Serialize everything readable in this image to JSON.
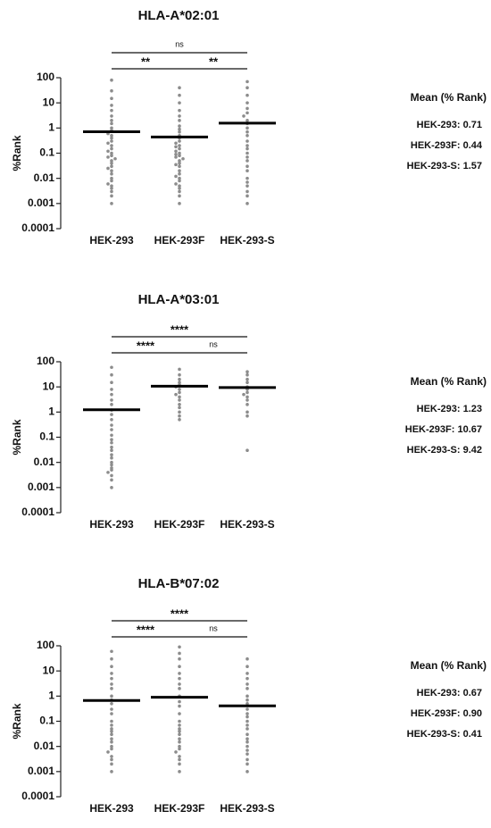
{
  "chart_data": [
    {
      "type": "dot",
      "title": "HLA-A*02:01",
      "ylabel": "%Rank",
      "log_scale": true,
      "color": "#8c8c8c",
      "categories": [
        "HEK-293",
        "HEK-293F",
        "HEK-293-S"
      ],
      "points": [
        [
          80,
          30,
          15,
          8,
          5,
          3,
          2,
          1.5,
          1,
          0.8,
          0.6,
          0.5,
          0.4,
          0.3,
          0.25,
          0.2,
          0.15,
          0.12,
          0.1,
          0.08,
          0.07,
          0.06,
          0.05,
          0.04,
          0.03,
          0.025,
          0.02,
          0.015,
          0.01,
          0.008,
          0.006,
          0.005,
          0.004,
          0.003,
          0.002,
          0.001
        ],
        [
          40,
          20,
          10,
          5,
          3,
          2,
          1.2,
          0.9,
          0.7,
          0.5,
          0.4,
          0.3,
          0.25,
          0.2,
          0.18,
          0.15,
          0.12,
          0.1,
          0.09,
          0.08,
          0.07,
          0.06,
          0.05,
          0.04,
          0.035,
          0.03,
          0.02,
          0.015,
          0.012,
          0.01,
          0.008,
          0.006,
          0.005,
          0.004,
          0.003,
          0.002,
          0.001
        ],
        [
          70,
          40,
          20,
          10,
          6,
          4,
          3,
          2,
          1.5,
          1,
          0.7,
          0.5,
          0.3,
          0.2,
          0.15,
          0.1,
          0.07,
          0.05,
          0.03,
          0.02,
          0.01,
          0.007,
          0.005,
          0.003,
          0.002,
          0.001
        ]
      ],
      "means": [
        0.71,
        0.44,
        1.57
      ],
      "ylim": [
        0.0001,
        100
      ],
      "yticks": [
        0.0001,
        0.001,
        0.01,
        0.1,
        1,
        10,
        100
      ],
      "comparisons": [
        {
          "from": "HEK-293",
          "to": "HEK-293-S",
          "label": "ns"
        },
        {
          "from": "HEK-293",
          "to": "HEK-293F",
          "label": "**"
        },
        {
          "from": "HEK-293F",
          "to": "HEK-293-S",
          "label": "**"
        }
      ],
      "legend_title": "Mean (% Rank)",
      "mean_labels": [
        "HEK-293: 0.71",
        "HEK-293F: 0.44",
        "HEK-293-S: 1.57"
      ]
    },
    {
      "type": "dot",
      "title": "HLA-A*03:01",
      "ylabel": "%Rank",
      "log_scale": true,
      "color": "#8c8c8c",
      "categories": [
        "HEK-293",
        "HEK-293F",
        "HEK-293-S"
      ],
      "points": [
        [
          60,
          30,
          15,
          8,
          5,
          3,
          2,
          1.2,
          0.8,
          0.5,
          0.3,
          0.2,
          0.12,
          0.08,
          0.06,
          0.04,
          0.03,
          0.02,
          0.015,
          0.01,
          0.008,
          0.006,
          0.005,
          0.004,
          0.003,
          0.002,
          0.001
        ],
        [
          50,
          30,
          20,
          15,
          12,
          10,
          8,
          6,
          5,
          4,
          3,
          2,
          1.5,
          1,
          0.7,
          0.5
        ],
        [
          40,
          30,
          20,
          15,
          10,
          8,
          6,
          5,
          4,
          3,
          2,
          1,
          0.7,
          0.03
        ]
      ],
      "means": [
        1.23,
        10.67,
        9.42
      ],
      "ylim": [
        0.0001,
        100
      ],
      "yticks": [
        0.0001,
        0.001,
        0.01,
        0.1,
        1,
        10,
        100
      ],
      "comparisons": [
        {
          "from": "HEK-293",
          "to": "HEK-293-S",
          "label": "****"
        },
        {
          "from": "HEK-293",
          "to": "HEK-293F",
          "label": "****"
        },
        {
          "from": "HEK-293F",
          "to": "HEK-293-S",
          "label": "ns"
        }
      ],
      "legend_title": "Mean (% Rank)",
      "mean_labels": [
        "HEK-293: 1.23",
        "HEK-293F: 10.67",
        "HEK-293-S: 9.42"
      ]
    },
    {
      "type": "dot",
      "title": "HLA-B*07:02",
      "ylabel": "%Rank",
      "log_scale": true,
      "color": "#8c8c8c",
      "categories": [
        "HEK-293",
        "HEK-293F",
        "HEK-293-S"
      ],
      "points": [
        [
          60,
          30,
          15,
          8,
          5,
          3,
          2,
          1,
          0.7,
          0.5,
          0.3,
          0.2,
          0.1,
          0.07,
          0.05,
          0.04,
          0.03,
          0.02,
          0.015,
          0.01,
          0.008,
          0.006,
          0.004,
          0.003,
          0.002,
          0.001
        ],
        [
          90,
          50,
          30,
          15,
          8,
          5,
          3,
          2,
          1,
          0.6,
          0.4,
          0.2,
          0.1,
          0.07,
          0.05,
          0.04,
          0.03,
          0.02,
          0.015,
          0.01,
          0.008,
          0.006,
          0.004,
          0.003,
          0.002,
          0.001
        ],
        [
          30,
          15,
          8,
          5,
          3,
          2,
          1,
          0.7,
          0.5,
          0.3,
          0.2,
          0.15,
          0.1,
          0.07,
          0.05,
          0.03,
          0.02,
          0.015,
          0.01,
          0.007,
          0.005,
          0.003,
          0.002,
          0.001
        ]
      ],
      "means": [
        0.67,
        0.9,
        0.41
      ],
      "ylim": [
        0.0001,
        100
      ],
      "yticks": [
        0.0001,
        0.001,
        0.01,
        0.1,
        1,
        10,
        100
      ],
      "comparisons": [
        {
          "from": "HEK-293",
          "to": "HEK-293-S",
          "label": "****"
        },
        {
          "from": "HEK-293",
          "to": "HEK-293F",
          "label": "****"
        },
        {
          "from": "HEK-293F",
          "to": "HEK-293-S",
          "label": "ns"
        }
      ],
      "legend_title": "Mean (% Rank)",
      "mean_labels": [
        "HEK-293: 0.67",
        "HEK-293F: 0.90",
        "HEK-293-S: 0.41"
      ]
    }
  ]
}
